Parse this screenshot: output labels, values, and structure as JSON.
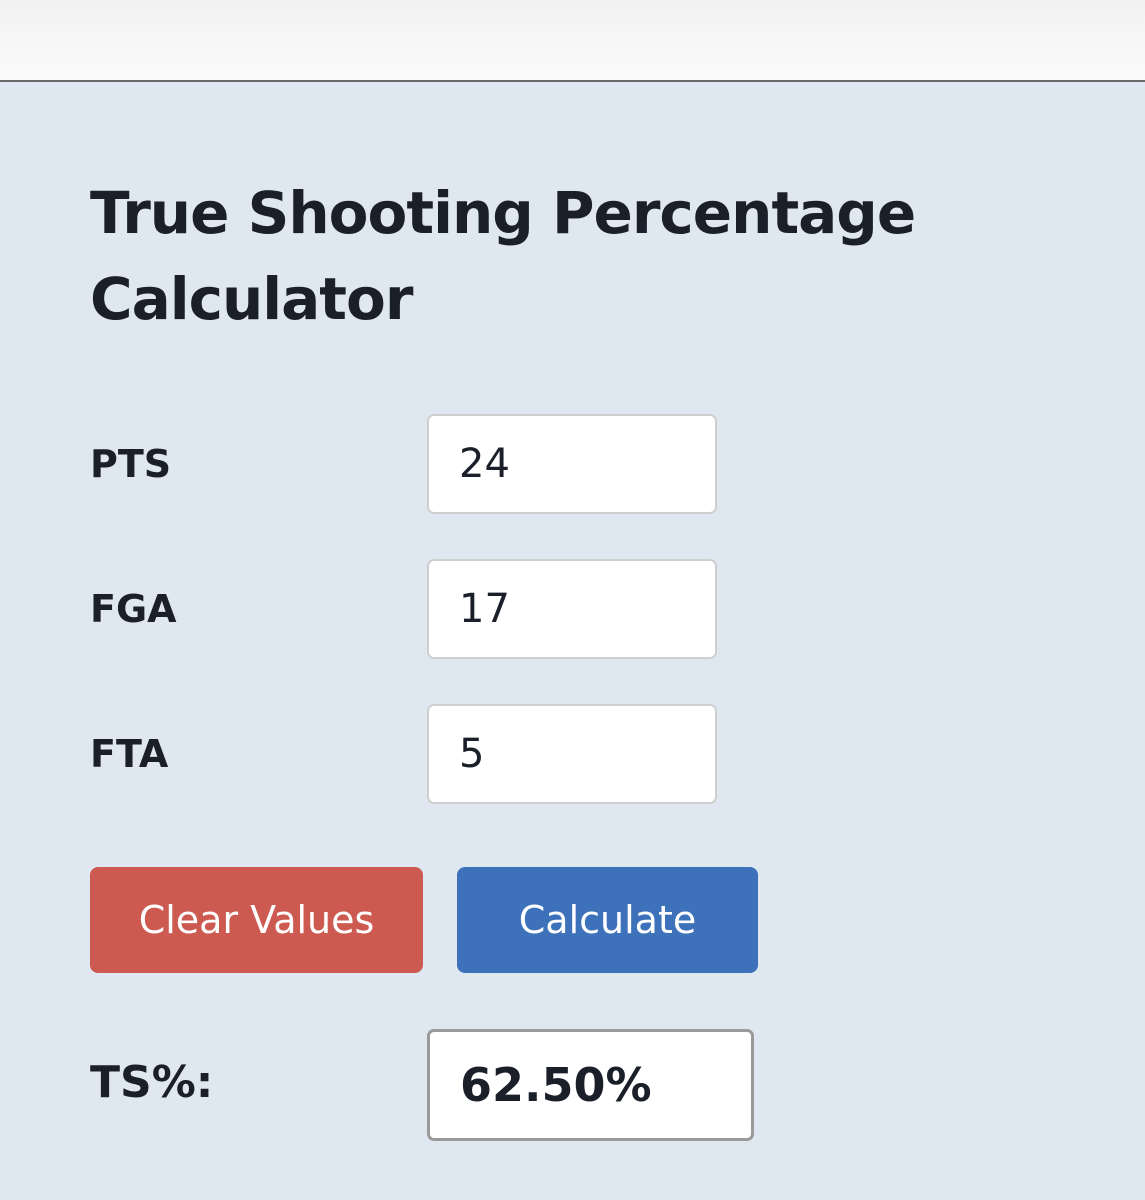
{
  "title": "True Shooting Percentage Calculator",
  "fields": [
    {
      "label": "PTS",
      "value": "24"
    },
    {
      "label": "FGA",
      "value": "17"
    },
    {
      "label": "FTA",
      "value": "5"
    }
  ],
  "buttons": {
    "clear": "Clear Values",
    "calculate": "Calculate"
  },
  "result": {
    "label": "TS%:",
    "value": "62.50%"
  }
}
